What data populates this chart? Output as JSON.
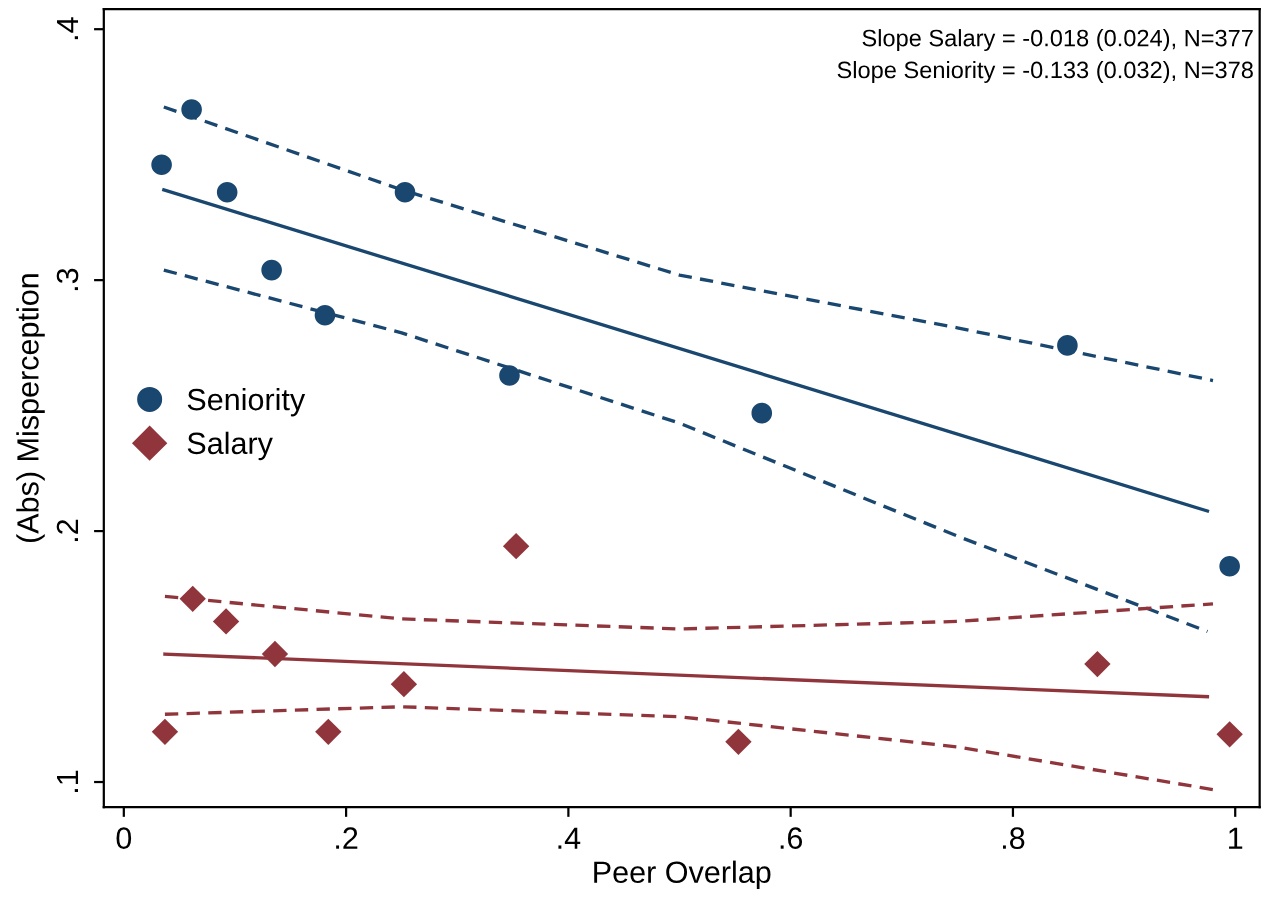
{
  "chart_data": {
    "type": "scatter",
    "xlabel": "Peer Overlap",
    "ylabel": "(Abs) Misperception",
    "xlim": [
      -0.018,
      1.022
    ],
    "ylim": [
      0.09,
      0.408
    ],
    "xticks": [
      0,
      {
        "value": 0.2,
        "label": ".2"
      },
      {
        "value": 0.4,
        "label": ".4"
      },
      {
        "value": 0.6,
        "label": ".6"
      },
      {
        "value": 0.8,
        "label": ".8"
      },
      1
    ],
    "yticks": [
      {
        "value": 0.1,
        "label": ".1"
      },
      {
        "value": 0.2,
        "label": ".2"
      },
      {
        "value": 0.3,
        "label": ".3"
      },
      {
        "value": 0.4,
        "label": ".4"
      }
    ],
    "grid": false,
    "legend": "left",
    "annotations": [
      "Slope Salary = -0.018 (0.024), N=377",
      "Slope Seniority = -0.133 (0.032), N=378"
    ],
    "series": [
      {
        "name": "Seniority",
        "marker": "circle",
        "color": "#1a476f",
        "x": [
          0.034,
          0.061,
          0.093,
          0.133,
          0.181,
          0.253,
          0.347,
          0.574,
          0.849,
          0.995
        ],
        "values": [
          0.346,
          0.368,
          0.335,
          0.304,
          0.286,
          0.335,
          0.262,
          0.247,
          0.274,
          0.186
        ]
      },
      {
        "name": "Salary",
        "marker": "diamond",
        "color": "#90353b",
        "x": [
          0.037,
          0.062,
          0.092,
          0.136,
          0.184,
          0.252,
          0.353,
          0.553,
          0.876,
          0.995
        ],
        "values": [
          0.12,
          0.173,
          0.164,
          0.151,
          0.12,
          0.139,
          0.194,
          0.116,
          0.147,
          0.119
        ]
      },
      {
        "type": "line",
        "line_style": "solid",
        "color": "#1a476f",
        "x": [
          0.036,
          0.975
        ],
        "values": [
          0.336,
          0.208
        ]
      },
      {
        "type": "line",
        "line_style": "dashed",
        "color": "#1a476f",
        "x": [
          0.036,
          0.25,
          0.5,
          0.75,
          0.98
        ],
        "values": [
          0.369,
          0.336,
          0.302,
          0.281,
          0.26
        ]
      },
      {
        "type": "line",
        "line_style": "dashed",
        "color": "#1a476f",
        "x": [
          0.036,
          0.25,
          0.5,
          0.75,
          0.975
        ],
        "values": [
          0.304,
          0.279,
          0.243,
          0.198,
          0.16
        ]
      },
      {
        "type": "line",
        "line_style": "solid",
        "color": "#90353b",
        "x": [
          0.037,
          0.975
        ],
        "values": [
          0.151,
          0.134
        ]
      },
      {
        "type": "line",
        "line_style": "dashed",
        "color": "#90353b",
        "x": [
          0.037,
          0.25,
          0.5,
          0.75,
          0.98
        ],
        "values": [
          0.174,
          0.165,
          0.161,
          0.164,
          0.171
        ]
      },
      {
        "type": "line",
        "line_style": "dashed",
        "color": "#90353b",
        "x": [
          0.037,
          0.25,
          0.5,
          0.75,
          0.98
        ],
        "values": [
          0.127,
          0.13,
          0.126,
          0.114,
          0.097
        ]
      }
    ]
  }
}
